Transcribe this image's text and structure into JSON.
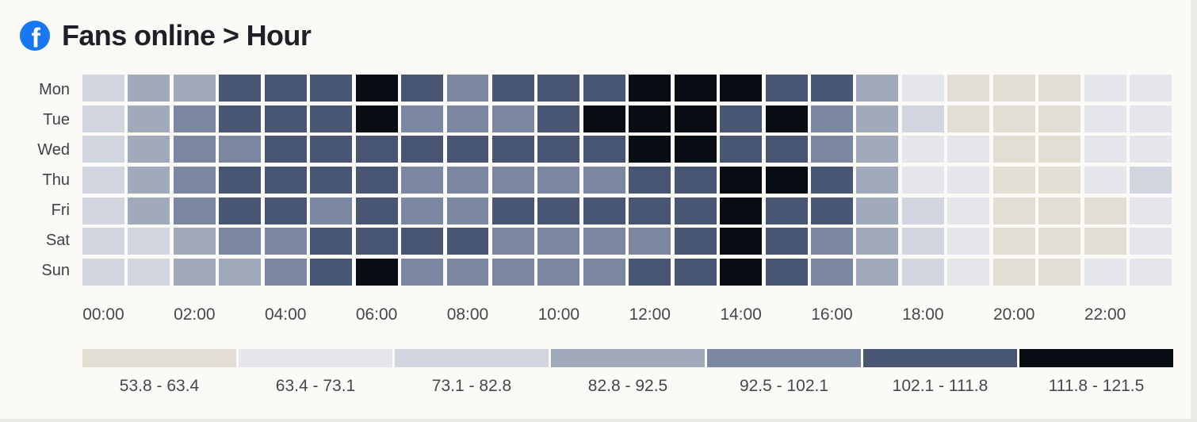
{
  "header": {
    "icon": "facebook-icon",
    "icon_color": "#1877f2",
    "title": "Fans online > Hour"
  },
  "chart_data": {
    "type": "heatmap",
    "title": "Fans online > Hour",
    "rows": [
      "Mon",
      "Tue",
      "Wed",
      "Thu",
      "Fri",
      "Sat",
      "Sun"
    ],
    "columns": [
      "00:00",
      "01:00",
      "02:00",
      "03:00",
      "04:00",
      "05:00",
      "06:00",
      "07:00",
      "08:00",
      "09:00",
      "10:00",
      "11:00",
      "12:00",
      "13:00",
      "14:00",
      "15:00",
      "16:00",
      "17:00",
      "18:00",
      "19:00",
      "20:00",
      "21:00",
      "22:00",
      "23:00"
    ],
    "x_tick_labels": [
      "00:00",
      "02:00",
      "04:00",
      "06:00",
      "08:00",
      "10:00",
      "12:00",
      "14:00",
      "16:00",
      "18:00",
      "20:00",
      "22:00"
    ],
    "levels": [
      [
        3,
        4,
        4,
        6,
        6,
        6,
        7,
        6,
        5,
        6,
        6,
        6,
        7,
        7,
        7,
        6,
        6,
        4,
        2,
        1,
        1,
        1,
        2,
        2
      ],
      [
        3,
        4,
        5,
        6,
        6,
        6,
        7,
        5,
        5,
        5,
        6,
        7,
        7,
        7,
        6,
        7,
        5,
        4,
        3,
        1,
        1,
        1,
        2,
        2
      ],
      [
        3,
        4,
        5,
        5,
        6,
        6,
        6,
        6,
        6,
        6,
        6,
        6,
        7,
        7,
        6,
        6,
        5,
        4,
        2,
        2,
        1,
        1,
        2,
        2
      ],
      [
        3,
        4,
        5,
        6,
        6,
        6,
        6,
        5,
        5,
        5,
        5,
        5,
        6,
        6,
        7,
        7,
        6,
        4,
        2,
        2,
        1,
        1,
        2,
        3
      ],
      [
        3,
        4,
        5,
        6,
        6,
        5,
        6,
        5,
        5,
        6,
        6,
        6,
        6,
        6,
        7,
        6,
        6,
        4,
        3,
        2,
        1,
        1,
        1,
        2
      ],
      [
        3,
        3,
        4,
        5,
        5,
        6,
        6,
        6,
        6,
        5,
        5,
        5,
        5,
        6,
        7,
        6,
        5,
        4,
        3,
        2,
        1,
        1,
        1,
        2
      ],
      [
        3,
        3,
        4,
        4,
        5,
        6,
        7,
        5,
        5,
        5,
        5,
        5,
        6,
        6,
        7,
        6,
        5,
        4,
        3,
        2,
        1,
        1,
        2,
        2
      ]
    ],
    "legend": [
      {
        "range": "53.8 - 63.4",
        "color": "#e2ded4",
        "level": 1
      },
      {
        "range": "63.4 - 73.1",
        "color": "#e5e7ed",
        "level": 2
      },
      {
        "range": "73.1 - 82.8",
        "color": "#d1d5df",
        "level": 3
      },
      {
        "range": "82.8 - 92.5",
        "color": "#a1aabb",
        "level": 4
      },
      {
        "range": "92.5 - 102.1",
        "color": "#7c88a2",
        "level": 5
      },
      {
        "range": "102.1 - 111.8",
        "color": "#485673",
        "level": 6
      },
      {
        "range": "111.8 - 121.5",
        "color": "#080c13",
        "level": 7
      }
    ],
    "value_min": 53.8,
    "value_max": 121.5
  }
}
